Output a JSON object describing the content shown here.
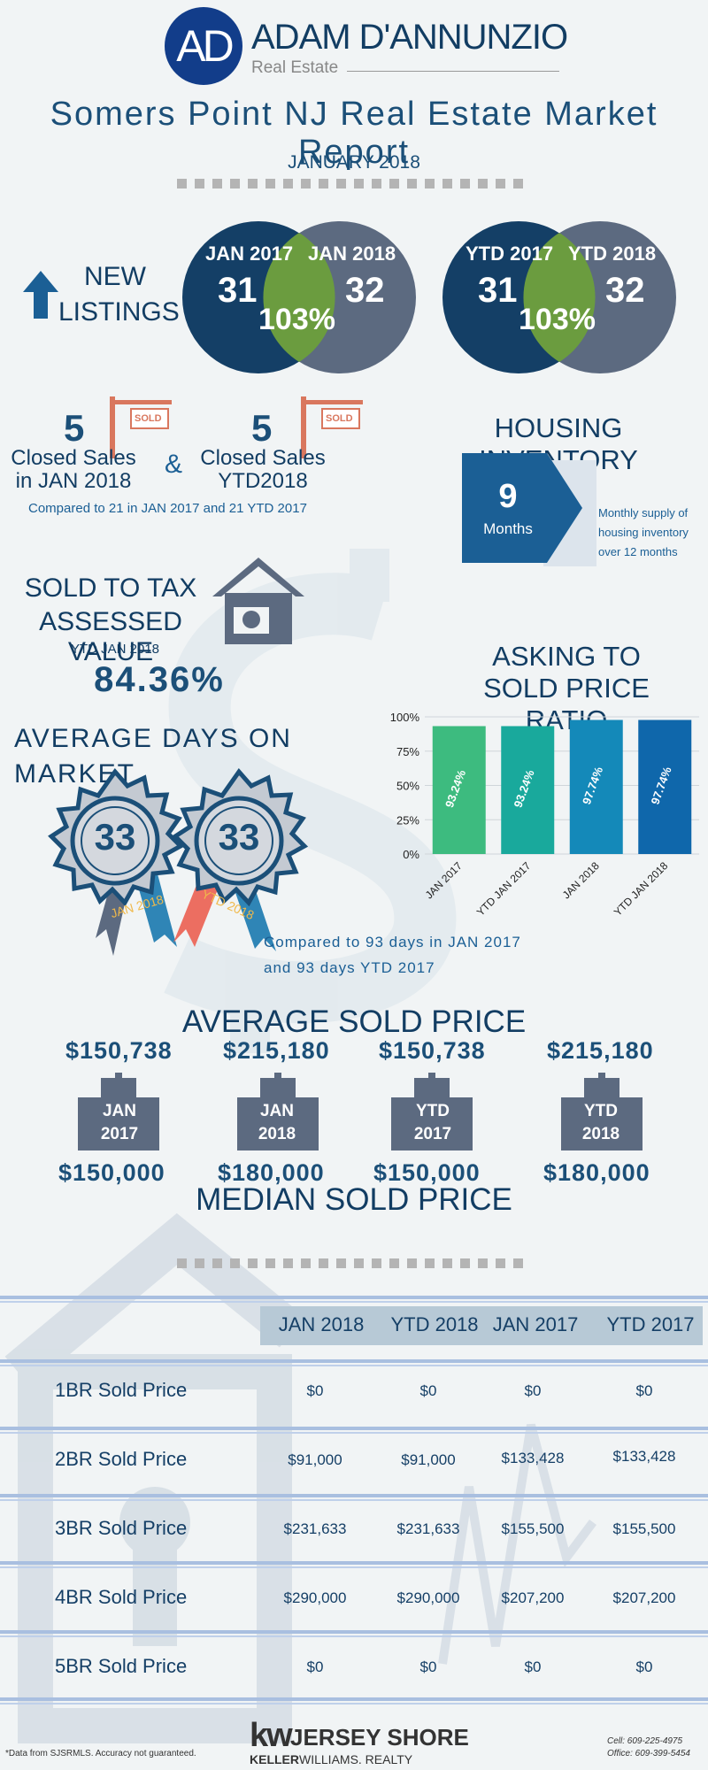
{
  "brand": {
    "initials": "AD",
    "name": "ADAM D'ANNUNZIO",
    "sub": "Real Estate"
  },
  "title": "Somers Point NJ Real Estate Market Report",
  "date": "JANUARY 2018",
  "new_listings": {
    "label_line1": "NEW",
    "label_line2": "LISTINGS",
    "monthly": {
      "left_label": "JAN 2017",
      "left_value": "31",
      "right_label": "JAN 2018",
      "right_value": "32",
      "pct": "103%"
    },
    "ytd": {
      "left_label": "YTD 2017",
      "left_value": "31",
      "right_label": "YTD 2018",
      "right_value": "32",
      "pct": "103%"
    }
  },
  "closed_sales": {
    "month_value": "5",
    "month_line1": "Closed Sales",
    "month_line2": "in JAN 2018",
    "ytd_value": "5",
    "ytd_line1": "Closed Sales",
    "ytd_line2": "YTD2018",
    "amp": "&",
    "sign_text": "SOLD",
    "compare": "Compared to 21 in JAN 2017 and 21 YTD 2017"
  },
  "inventory": {
    "title": "HOUSING INVENTORY",
    "value": "9",
    "unit": "Months",
    "desc_line1": "Monthly supply of",
    "desc_line2": "housing inventory",
    "desc_line3": "over 12 months"
  },
  "tax": {
    "line1": "SOLD TO TAX",
    "line2": "ASSESSED VALUE",
    "sub": "YTD JAN 2018",
    "value": "84.36%"
  },
  "days": {
    "title_line1": "AVERAGE DAYS ON",
    "title_line2": "MARKET",
    "badge1_value": "33",
    "badge1_label": "JAN 2018",
    "badge2_value": "33",
    "badge2_label": "YTD 2018",
    "compare_line1": "Compared to 93 days in JAN 2017",
    "compare_line2": "and 93 days YTD 2017"
  },
  "chart_title_line1": "ASKING TO",
  "chart_title_line2": "SOLD PRICE RATIO",
  "chart_data": {
    "type": "bar",
    "categories": [
      "JAN 2017",
      "YTD JAN 2017",
      "JAN 2018",
      "YTD JAN 2018"
    ],
    "values": [
      93.24,
      93.24,
      97.74,
      97.74
    ],
    "data_labels": [
      "93.24%",
      "93.24%",
      "97.74%",
      "97.74%"
    ],
    "colors": [
      "#3dbb7f",
      "#19a99c",
      "#1489b9",
      "#0f67ab"
    ],
    "yticks": [
      "100%",
      "75%",
      "50%",
      "25%",
      "0%"
    ],
    "ylim": [
      0,
      100
    ],
    "title": "ASKING TO SOLD PRICE RATIO"
  },
  "prices": {
    "avg_title": "AVERAGE SOLD PRICE",
    "median_title": "MEDIAN SOLD PRICE",
    "items": [
      {
        "avg": "$150,738",
        "median": "$150,000",
        "line1": "JAN",
        "line2": "2017"
      },
      {
        "avg": "$215,180",
        "median": "$180,000",
        "line1": "JAN",
        "line2": "2018"
      },
      {
        "avg": "$150,738",
        "median": "$150,000",
        "line1": "YTD",
        "line2": "2017"
      },
      {
        "avg": "$215,180",
        "median": "$180,000",
        "line1": "YTD",
        "line2": "2018"
      }
    ]
  },
  "table": {
    "headers": [
      "JAN 2018",
      "YTD 2018",
      "JAN 2017",
      "YTD 2017"
    ],
    "rows": [
      {
        "label": "1BR Sold Price",
        "cells": [
          "$0",
          "$0",
          "$0",
          "$0"
        ]
      },
      {
        "label": "2BR Sold Price",
        "cells": [
          "$91,000",
          "$91,000",
          "$133,428",
          "$133,428"
        ]
      },
      {
        "label": "3BR Sold Price",
        "cells": [
          "$231,633",
          "$231,633",
          "$155,500",
          "$155,500"
        ]
      },
      {
        "label": "4BR Sold Price",
        "cells": [
          "$290,000",
          "$290,000",
          "$207,200",
          "$207,200"
        ]
      },
      {
        "label": "5BR Sold Price",
        "cells": [
          "$0",
          "$0",
          "$0",
          "$0"
        ]
      }
    ]
  },
  "footer": {
    "disclaimer": "*Data from SJSRMLS.  Accuracy not guaranteed.",
    "kw": "kw",
    "brand_main": "JERSEY SHORE",
    "brand_sub_a": "KELLER",
    "brand_sub_b": "WILLIAMS. REALTY",
    "cell": "Cell: 609-225-4975",
    "office": "Office: 609-399-5454"
  }
}
